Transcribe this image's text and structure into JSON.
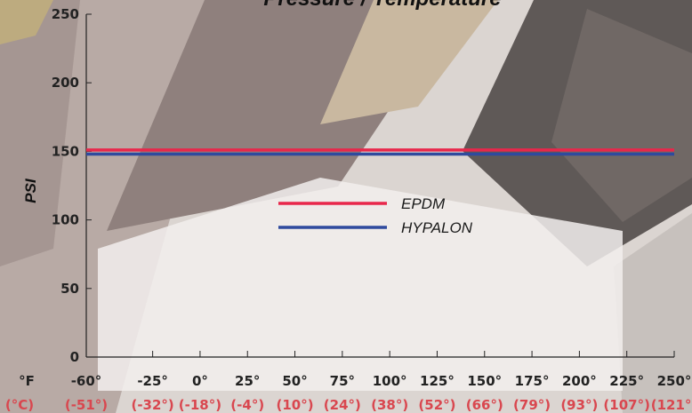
{
  "chart_data": {
    "type": "line",
    "title": "Pressure / Temperature",
    "ylabel": "PSI",
    "ylim": [
      0,
      250
    ],
    "yticks": [
      0,
      50,
      100,
      150,
      200,
      250
    ],
    "xlim": [
      -60,
      250
    ],
    "x_unit_label": "°F",
    "x_alt_unit_label": "(°C)",
    "xticks": [
      {
        "f": -60,
        "f_label": "-60°",
        "c_label": "(-51°)"
      },
      {
        "f": -25,
        "f_label": "-25°",
        "c_label": "(-32°)"
      },
      {
        "f": 0,
        "f_label": "0°",
        "c_label": "(-18°)"
      },
      {
        "f": 25,
        "f_label": "25°",
        "c_label": "(-4°)"
      },
      {
        "f": 50,
        "f_label": "50°",
        "c_label": "(10°)"
      },
      {
        "f": 75,
        "f_label": "75°",
        "c_label": "(24°)"
      },
      {
        "f": 100,
        "f_label": "100°",
        "c_label": "(38°)"
      },
      {
        "f": 125,
        "f_label": "125°",
        "c_label": "(52°)"
      },
      {
        "f": 150,
        "f_label": "150°",
        "c_label": "(66°)"
      },
      {
        "f": 175,
        "f_label": "175°",
        "c_label": "(79°)"
      },
      {
        "f": 200,
        "f_label": "200°",
        "c_label": "(93°)"
      },
      {
        "f": 225,
        "f_label": "225°",
        "c_label": "(107°)"
      },
      {
        "f": 250,
        "f_label": "250°",
        "c_label": "(121°)"
      }
    ],
    "series": [
      {
        "name": "EPDM",
        "color": "#e8274b",
        "x": [
          -60,
          250
        ],
        "y": [
          151,
          151
        ]
      },
      {
        "name": "HYPALON",
        "color": "#2f4a9e",
        "x": [
          -60,
          250
        ],
        "y": [
          148,
          148
        ]
      }
    ],
    "legend_position": "center",
    "grid": false,
    "celsius_color": "#d9474f"
  }
}
